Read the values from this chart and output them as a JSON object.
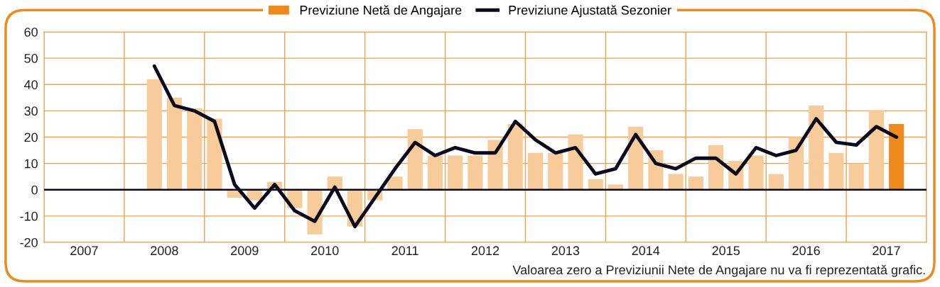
{
  "chart_data": {
    "type": "bar",
    "annotations": [
      "Valoarea zero a Previziunii Nete de Angajare nu va fi reprezentată grafic."
    ],
    "x": [
      2008.375,
      2008.625,
      2008.875,
      2009.125,
      2009.375,
      2009.625,
      2009.875,
      2010.125,
      2010.375,
      2010.625,
      2010.875,
      2011.125,
      2011.375,
      2011.625,
      2011.875,
      2012.125,
      2012.375,
      2012.625,
      2012.875,
      2013.125,
      2013.375,
      2013.625,
      2013.875,
      2014.125,
      2014.375,
      2014.625,
      2014.875,
      2015.125,
      2015.375,
      2015.625,
      2015.875,
      2016.125,
      2016.375,
      2016.625,
      2016.875,
      2017.125,
      2017.375,
      2017.625
    ],
    "series": [
      {
        "name": "Previziune Netă de Angajare",
        "color": "#ee8a1d",
        "colors": [
          "#f8cb9b",
          "#f8cb9b",
          "#f8cb9b",
          "#f8cb9b",
          "#f8cb9b",
          "#f8cb9b",
          "#f8cb9b",
          "#f8cb9b",
          "#f8cb9b",
          "#f8cb9b",
          "#f8cb9b",
          "#f8cb9b",
          "#f8cb9b",
          "#f8cb9b",
          "#f8cb9b",
          "#f8cb9b",
          "#f8cb9b",
          "#f8cb9b",
          "#f8cb9b",
          "#f8cb9b",
          "#f8cb9b",
          "#f8cb9b",
          "#f8cb9b",
          "#f8cb9b",
          "#f8cb9b",
          "#f8cb9b",
          "#f8cb9b",
          "#f8cb9b",
          "#f8cb9b",
          "#f8cb9b",
          "#f8cb9b",
          "#f8cb9b",
          "#f8cb9b",
          "#f8cb9b",
          "#f8cb9b",
          "#f8cb9b",
          "#f8cb9b",
          "#ee8a1d"
        ],
        "values": [
          42,
          35,
          31,
          27,
          -3,
          -4,
          3,
          -7,
          -17,
          5,
          -14,
          -4,
          5,
          23,
          13,
          13,
          13,
          19,
          25,
          14,
          14,
          21,
          4,
          2,
          24,
          15,
          6,
          5,
          17,
          11,
          13,
          6,
          20,
          32,
          14,
          10,
          30,
          25
        ]
      },
      {
        "name": "Previziune Ajustată Sezonier",
        "type": "line",
        "color": "#0a0a1e",
        "values": [
          47,
          32,
          30,
          26,
          2,
          -7,
          2,
          -8,
          -12,
          1,
          -14,
          -3,
          8,
          18,
          13,
          16,
          14,
          14,
          26,
          19,
          14,
          16,
          6,
          8,
          21,
          10,
          8,
          12,
          12,
          6,
          16,
          13,
          15,
          27,
          18,
          17,
          24,
          20
        ]
      }
    ],
    "xlim": [
      2007,
      2018
    ],
    "xticks": [
      {
        "value": 2007,
        "label": null
      },
      {
        "value": 2007.5,
        "label": "2007"
      },
      {
        "value": 2008,
        "label": null
      },
      {
        "value": 2008.5,
        "label": "2008"
      },
      {
        "value": 2009,
        "label": null
      },
      {
        "value": 2009.5,
        "label": "2009"
      },
      {
        "value": 2010,
        "label": null
      },
      {
        "value": 2010.5,
        "label": "2010"
      },
      {
        "value": 2011,
        "label": null
      },
      {
        "value": 2011.5,
        "label": "2011"
      },
      {
        "value": 2012,
        "label": null
      },
      {
        "value": 2012.5,
        "label": "2012"
      },
      {
        "value": 2013,
        "label": null
      },
      {
        "value": 2013.5,
        "label": "2013"
      },
      {
        "value": 2014,
        "label": null
      },
      {
        "value": 2014.5,
        "label": "2014"
      },
      {
        "value": 2015,
        "label": null
      },
      {
        "value": 2015.5,
        "label": "2015"
      },
      {
        "value": 2016,
        "label": null
      },
      {
        "value": 2016.5,
        "label": "2016"
      },
      {
        "value": 2017,
        "label": null
      },
      {
        "value": 2017.5,
        "label": "2017"
      },
      {
        "value": 2018,
        "label": null
      }
    ],
    "ylim": [
      -20,
      60
    ],
    "yticks": [
      -20,
      -10,
      0,
      10,
      20,
      30,
      40,
      50,
      60
    ],
    "ref_lines": [
      {
        "axis": "y",
        "value": 0,
        "color": "#0a0a1e"
      }
    ],
    "grid": true,
    "legend": "top"
  }
}
